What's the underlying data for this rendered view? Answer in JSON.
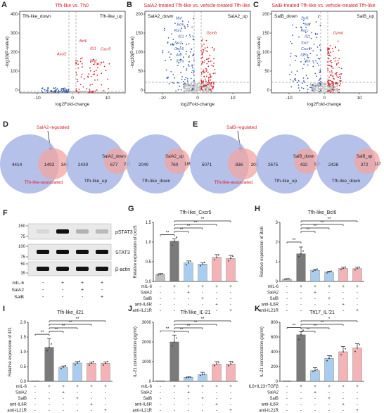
{
  "panels": {
    "A": {
      "letter": "A",
      "title": "Tfh-like vs. Th0",
      "left_label": "Tfh-like_down",
      "right_label": "Tfh-like_up",
      "genes": [
        "Bcl6",
        "Il21",
        "Cxcr5",
        "Maf",
        "Tox2",
        "Ascl2"
      ]
    },
    "B": {
      "letter": "B",
      "title": "SalA2-treated Tfh-like vs. vehicle-treated Tfh-like",
      "left_label": "SalA2_down",
      "right_label": "SalA2_up",
      "genes_down": [
        "Maf",
        "Bcl6",
        "Rorc",
        "Il21",
        "Tox2",
        "Cxcr5",
        "Ahr",
        "Il17a"
      ],
      "genes_up": [
        "Gzmb"
      ]
    },
    "C": {
      "letter": "C",
      "title": "SalB-treated Tfh-like vs. vehicle-treated Tfh-like",
      "left_label": "SalB_down",
      "right_label": "SalB_up",
      "genes_down": [
        "Bcl6",
        "Maf",
        "Rorc",
        "Il21",
        "Tox2",
        "Cxcr5",
        "Il17a",
        "Ahr"
      ],
      "genes_up": [
        "Gzmb"
      ]
    },
    "volcano_axes": {
      "ylabel": "-log10(P-value)",
      "xlabel": "log2Fold-change",
      "xticks": [
        "-10",
        "0",
        "10"
      ],
      "yticks_A": [
        "0",
        "100",
        "200",
        "300",
        "400"
      ],
      "yticks_BC": [
        "0",
        "50",
        "100",
        "150",
        "200"
      ]
    },
    "D": {
      "letter": "D",
      "arrow_label": "SalA2-regulated",
      "bottom_label": "Tfh-like-associated",
      "v1": {
        "left": "4414",
        "mid": "1493",
        "right": "344"
      },
      "v2": {
        "left": "2430",
        "mid": "677",
        "right": "215",
        "inner": "SalA2_down",
        "outer": "Tfh-like_up"
      },
      "v3": {
        "left": "2040",
        "mid": "760",
        "right": "185",
        "inner": "SalA2_up",
        "outer": "Tfh-like_down"
      }
    },
    "E": {
      "letter": "E",
      "arrow_label": "SalB-regulated",
      "bottom_label": "Tfh-like-associated",
      "v1": {
        "left": "5071",
        "mid": "836",
        "right": "203"
      },
      "v2": {
        "left": "2675",
        "mid": "432",
        "right": "118",
        "inner": "SalB_down",
        "outer": "Tfh-like_up"
      },
      "v3": {
        "left": "2428",
        "mid": "372",
        "right": "117",
        "inner": "SalB_up",
        "outer": "Tfh-like_down"
      }
    },
    "F": {
      "letter": "F",
      "bands": [
        "pSTAT3",
        "STAT3",
        "β-actin"
      ],
      "mw": [
        "150",
        "75",
        "100",
        "75",
        "50",
        "35"
      ],
      "rows": [
        {
          "label": "mIL-6",
          "v": [
            "-",
            "+",
            "+",
            "+"
          ]
        },
        {
          "label": "SalA2",
          "v": [
            "-",
            "-",
            "+",
            "-"
          ]
        },
        {
          "label": "SalB",
          "v": [
            "-",
            "-",
            "-",
            "+"
          ]
        }
      ]
    },
    "G": {
      "letter": "G",
      "title": "Tfh-like_Cxcr5",
      "ylabel": "Relative expression of cxcr5",
      "yticks": [
        "0.0",
        "0.5",
        "1.0",
        "1.5"
      ]
    },
    "H": {
      "letter": "H",
      "title": "Tfh-like_Bcl6",
      "ylabel": "Relative expression of Bcl6",
      "yticks": [
        "0",
        "1",
        "2",
        "3"
      ]
    },
    "I": {
      "letter": "I",
      "title": "Tfh-like_il21",
      "ylabel": "Relative expression of il21",
      "yticks": [
        "0.0",
        "0.5",
        "1.0",
        "1.5",
        "2.0"
      ]
    },
    "J": {
      "letter": "J",
      "title": "Tfh-like_IL-21",
      "ylabel": "IL-21 concentration (pg/ml)",
      "yticks": [
        "0",
        "1000",
        "2000",
        "3000"
      ]
    },
    "K": {
      "letter": "K",
      "title": "Th17_IL-21",
      "ylabel": "IL-21 concentration (pg/ml)",
      "yticks": [
        "0",
        "200",
        "400",
        "600",
        "800"
      ]
    },
    "treat_rows_5": [
      {
        "label": "mIL-6",
        "v": [
          "-",
          "+",
          "+",
          "+",
          "+",
          "+"
        ]
      },
      {
        "label": "SalA2",
        "v": [
          "-",
          "-",
          "+",
          "-",
          "-",
          "-"
        ]
      },
      {
        "label": "SalB",
        "v": [
          "-",
          "-",
          "-",
          "+",
          "-",
          "-"
        ]
      },
      {
        "label": "anti-IL6R",
        "v": [
          "-",
          "-",
          "-",
          "-",
          "+",
          "-"
        ]
      },
      {
        "label": "anti-IL21R",
        "v": [
          "-",
          "-",
          "-",
          "-",
          "-",
          "+"
        ]
      }
    ],
    "treat_rows_K": [
      {
        "label": "IL6+IL23+TGFβ",
        "v": [
          "-",
          "+",
          "+",
          "+",
          "+",
          "+"
        ]
      },
      {
        "label": "SalA2",
        "v": [
          "-",
          "-",
          "+",
          "-",
          "-",
          "-"
        ]
      },
      {
        "label": "SalB",
        "v": [
          "-",
          "-",
          "-",
          "+",
          "-",
          "-"
        ]
      },
      {
        "label": "anti-IL6R",
        "v": [
          "-",
          "-",
          "-",
          "-",
          "+",
          "-"
        ]
      },
      {
        "label": "anti-IL21R",
        "v": [
          "-",
          "-",
          "-",
          "-",
          "-",
          "+"
        ]
      }
    ],
    "sig": [
      "**",
      "**",
      "**",
      "**",
      "**"
    ],
    "sig_K": [
      "**",
      "**",
      "**",
      "**",
      "*"
    ]
  },
  "chart_data": [
    {
      "type": "bar",
      "panel": "G",
      "title": "Tfh-like_Cxcr5",
      "ylabel": "Relative expression of cxcr5",
      "ylim": [
        0,
        1.5
      ],
      "categories": [
        "1",
        "2",
        "3",
        "4",
        "5",
        "6"
      ],
      "values": [
        0.18,
        1.02,
        0.47,
        0.44,
        0.61,
        0.58
      ],
      "errors": [
        0.02,
        0.06,
        0.05,
        0.03,
        0.07,
        0.08
      ]
    },
    {
      "type": "bar",
      "panel": "H",
      "title": "Tfh-like_Bcl6",
      "ylabel": "Relative expression of Bcl6",
      "ylim": [
        0,
        3
      ],
      "categories": [
        "1",
        "2",
        "3",
        "4",
        "5",
        "6"
      ],
      "values": [
        0.12,
        1.4,
        0.57,
        0.48,
        0.66,
        0.65
      ],
      "errors": [
        0.02,
        0.35,
        0.04,
        0.04,
        0.06,
        0.07
      ]
    },
    {
      "type": "bar",
      "panel": "I",
      "title": "Tfh-like_il21",
      "ylabel": "Relative expression of il21",
      "ylim": [
        0,
        2
      ],
      "categories": [
        "1",
        "2",
        "3",
        "4",
        "5",
        "6"
      ],
      "values": [
        0.0,
        1.15,
        0.48,
        0.62,
        0.61,
        0.61
      ],
      "errors": [
        0.0,
        0.3,
        0.04,
        0.05,
        0.04,
        0.05
      ]
    },
    {
      "type": "bar",
      "panel": "J",
      "title": "Tfh-like_IL-21",
      "ylabel": "IL-21 concentration (pg/ml)",
      "ylim": [
        0,
        3000
      ],
      "categories": [
        "1",
        "2",
        "3",
        "4",
        "5",
        "6"
      ],
      "values": [
        0,
        2000,
        200,
        340,
        880,
        880
      ],
      "errors": [
        0,
        350,
        30,
        120,
        120,
        130
      ]
    },
    {
      "type": "bar",
      "panel": "K",
      "title": "Th17_IL-21",
      "ylabel": "IL-21 concentration (pg/ml)",
      "ylim": [
        0,
        800
      ],
      "categories": [
        "1",
        "2",
        "3",
        "4",
        "5",
        "6"
      ],
      "values": [
        0,
        630,
        145,
        310,
        400,
        450
      ],
      "errors": [
        0,
        40,
        40,
        40,
        70,
        60
      ]
    }
  ],
  "colors": {
    "down": "#3b5ea8",
    "up": "#d7242f",
    "ns": "#bdbdbd",
    "venn_blue": "#a9b6e6",
    "venn_red": "#f2a4a0",
    "bars": [
      "#bfbfbf",
      "#7a7a7a",
      "#a9cdee",
      "#a9cdee",
      "#f4b3b7",
      "#f4b3b7"
    ]
  }
}
